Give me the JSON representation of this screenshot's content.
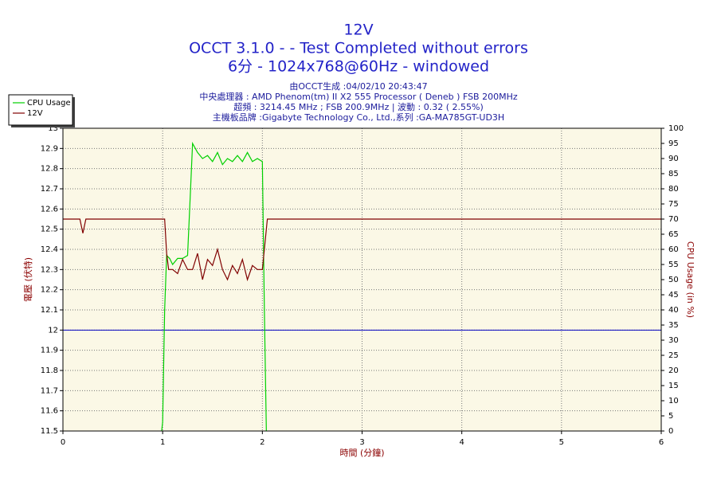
{
  "chart_data": {
    "type": "line",
    "title": "12V",
    "subtitle": [
      "OCCT 3.1.0 -  - Test Completed without errors",
      "6分 - 1024x768@60Hz - windowed"
    ],
    "info": [
      "由OCCT生成 :04/02/10 20:43:47",
      "中央處理器 : AMD Phenom(tm) II X2 555 Processor ( Deneb ) FSB 200MHz",
      "超頻 : 3214.45 MHz ; FSB 200.9MHz | 波動 : 0.32 ( 2.55%)",
      "主機板品牌 :Gigabyte Technology Co., Ltd.,系列 :GA-MA785GT-UD3H"
    ],
    "x_label": "時間 (分鐘)",
    "y_label": "電壓 (伏特)",
    "y2_label": "CPU Usage (in %)",
    "xlim": [
      0,
      6
    ],
    "xticks": [
      0,
      1,
      2,
      3,
      4,
      5,
      6
    ],
    "ylim": [
      11.5,
      13
    ],
    "yticks": [
      11.5,
      11.6,
      11.7,
      11.8,
      11.9,
      12,
      12.1,
      12.2,
      12.3,
      12.4,
      12.5,
      12.6,
      12.7,
      12.8,
      12.9,
      13
    ],
    "y2lim": [
      0,
      100
    ],
    "y2ticks": [
      0,
      5,
      10,
      15,
      20,
      25,
      30,
      35,
      40,
      45,
      50,
      55,
      60,
      65,
      70,
      75,
      80,
      85,
      90,
      95,
      100
    ],
    "grid": true,
    "legend": "top-left",
    "reference_line": {
      "value": 12,
      "color": "#0000c0"
    },
    "series": [
      {
        "name": "CPU Usage",
        "color": "#00d000",
        "axis": "y2",
        "x": [
          0.99,
          1.0,
          1.02,
          1.04,
          1.07,
          1.1,
          1.15,
          1.2,
          1.25,
          1.28,
          1.3,
          1.35,
          1.4,
          1.45,
          1.5,
          1.55,
          1.6,
          1.65,
          1.7,
          1.75,
          1.8,
          1.85,
          1.9,
          1.95,
          2.0,
          2.02,
          2.04
        ],
        "values": [
          0,
          3,
          40,
          58,
          57,
          55,
          57,
          57,
          58,
          80,
          95,
          92,
          90,
          91,
          89,
          92,
          88,
          90,
          89,
          91,
          89,
          92,
          89,
          90,
          89,
          40,
          0
        ]
      },
      {
        "name": "12V",
        "color": "#800000",
        "axis": "y",
        "x": [
          0,
          0.17,
          0.2,
          0.23,
          1.02,
          1.04,
          1.06,
          1.1,
          1.15,
          1.2,
          1.25,
          1.3,
          1.35,
          1.4,
          1.45,
          1.5,
          1.55,
          1.6,
          1.65,
          1.7,
          1.75,
          1.8,
          1.85,
          1.9,
          1.95,
          2.0,
          2.02,
          2.05,
          6
        ],
        "values": [
          12.55,
          12.55,
          12.48,
          12.55,
          12.55,
          12.38,
          12.3,
          12.3,
          12.28,
          12.35,
          12.3,
          12.3,
          12.38,
          12.25,
          12.35,
          12.32,
          12.4,
          12.3,
          12.25,
          12.32,
          12.28,
          12.35,
          12.25,
          12.32,
          12.3,
          12.3,
          12.4,
          12.55,
          12.55
        ]
      }
    ]
  }
}
